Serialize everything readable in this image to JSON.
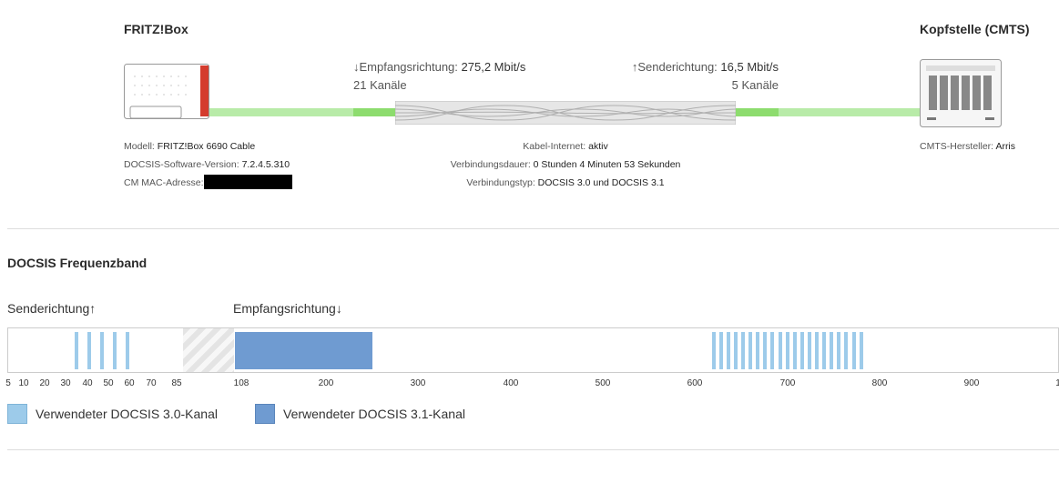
{
  "overview": {
    "left_device_title": "FRITZ!Box",
    "right_device_title": "Kopfstelle (CMTS)",
    "downstream": {
      "label": "↓Empfangsrichtung:",
      "rate": "275,2 Mbit/s",
      "channels": "21 Kanäle"
    },
    "upstream": {
      "label": "↑Senderichtung:",
      "rate": "16,5 Mbit/s",
      "channels": "5 Kanäle"
    },
    "left_info": {
      "model_label": "Modell:",
      "model_value": "FRITZ!Box 6690 Cable",
      "docsis_sw_label": "DOCSIS-Software-Version:",
      "docsis_sw_value": "7.2.4.5.310",
      "mac_label": "CM MAC-Adresse:"
    },
    "center_info": {
      "cable_label": "Kabel-Internet:",
      "cable_value": "aktiv",
      "duration_label": "Verbindungsdauer:",
      "duration_value": "0 Stunden 4 Minuten 53 Sekunden",
      "type_label": "Verbindungstyp:",
      "type_value": "DOCSIS 3.0 und DOCSIS 3.1"
    },
    "right_info": {
      "vendor_label": "CMTS-Hersteller:",
      "vendor_value": "Arris"
    }
  },
  "frequency_band": {
    "heading": "DOCSIS Frequenzband",
    "upstream_label": "Senderichtung↑",
    "downstream_label": "Empfangsrichtung↓",
    "ticks": [
      "5",
      "10",
      "20",
      "30",
      "40",
      "50",
      "60",
      "70",
      "85",
      "108",
      "200",
      "300",
      "400",
      "500",
      "600",
      "700",
      "800",
      "900",
      "1"
    ],
    "upstream_channels_mhz": [
      35,
      41,
      47,
      53,
      59
    ],
    "docsis31_block_mhz": [
      108,
      250
    ],
    "docsis30_down_first_mhz": 610,
    "docsis30_down_count": 21,
    "docsis30_down_spacing_mhz": 8,
    "colors": {
      "d30": "#9dcbea",
      "d31": "#6f9bd1",
      "guard": "#e4e4e4"
    },
    "legend": [
      {
        "label": "Verwendeter DOCSIS 3.0-Kanal",
        "color": "#9dcbea"
      },
      {
        "label": "Verwendeter DOCSIS 3.1-Kanal",
        "color": "#6f9bd1"
      }
    ]
  }
}
